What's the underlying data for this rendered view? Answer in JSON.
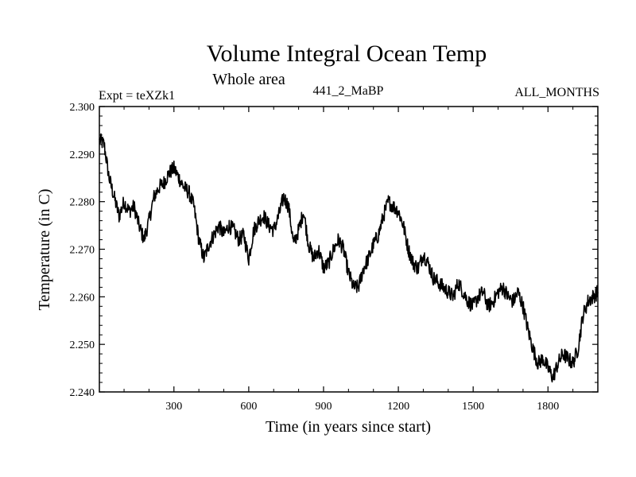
{
  "chart_data": {
    "type": "line",
    "title": "Volume Integral Ocean Temp",
    "subtitle": "Whole area",
    "experiment_label": "Expt = teXZk1",
    "run_label": "441_2_MaBP",
    "months_label": "ALL_MONTHS",
    "xlabel": "Time (in years since start)",
    "ylabel": "Temperature (in C)",
    "xlim": [
      1,
      2000
    ],
    "ylim": [
      2.24,
      2.3
    ],
    "xticks": [
      300,
      600,
      900,
      1200,
      1500,
      1800
    ],
    "xtick_labels": [
      "300",
      "600",
      "900",
      "1200",
      "1500",
      "1800"
    ],
    "yticks": [
      2.24,
      2.25,
      2.26,
      2.27,
      2.28,
      2.29,
      2.3
    ],
    "ytick_labels": [
      "2.240",
      "2.250",
      "2.260",
      "2.270",
      "2.280",
      "2.290",
      "2.300"
    ],
    "grid": false,
    "legend": "none",
    "series": [
      {
        "name": "Volume integral ocean temperature",
        "color": "#000000",
        "x": [
          1,
          20,
          40,
          60,
          80,
          100,
          120,
          140,
          160,
          180,
          200,
          220,
          240,
          260,
          280,
          300,
          320,
          340,
          360,
          380,
          400,
          420,
          440,
          460,
          480,
          500,
          520,
          540,
          560,
          580,
          600,
          620,
          640,
          660,
          680,
          700,
          720,
          740,
          760,
          780,
          800,
          820,
          840,
          860,
          880,
          900,
          920,
          940,
          960,
          980,
          1000,
          1020,
          1040,
          1060,
          1080,
          1100,
          1120,
          1140,
          1160,
          1180,
          1200,
          1220,
          1240,
          1260,
          1280,
          1300,
          1320,
          1340,
          1360,
          1380,
          1400,
          1420,
          1440,
          1460,
          1480,
          1500,
          1520,
          1540,
          1560,
          1580,
          1600,
          1620,
          1640,
          1660,
          1680,
          1700,
          1720,
          1740,
          1760,
          1780,
          1800,
          1820,
          1840,
          1860,
          1880,
          1900,
          1920,
          1940,
          1960,
          1980,
          2000
        ],
        "values": [
          2.293,
          2.292,
          2.285,
          2.281,
          2.277,
          2.28,
          2.278,
          2.279,
          2.275,
          2.272,
          2.276,
          2.281,
          2.283,
          2.284,
          2.286,
          2.287,
          2.285,
          2.283,
          2.282,
          2.279,
          2.272,
          2.268,
          2.271,
          2.273,
          2.275,
          2.273,
          2.275,
          2.274,
          2.272,
          2.273,
          2.268,
          2.274,
          2.276,
          2.277,
          2.275,
          2.274,
          2.277,
          2.281,
          2.279,
          2.271,
          2.274,
          2.278,
          2.271,
          2.268,
          2.27,
          2.266,
          2.267,
          2.27,
          2.272,
          2.27,
          2.265,
          2.262,
          2.262,
          2.266,
          2.268,
          2.271,
          2.273,
          2.277,
          2.28,
          2.279,
          2.278,
          2.275,
          2.27,
          2.267,
          2.266,
          2.269,
          2.267,
          2.264,
          2.263,
          2.262,
          2.261,
          2.26,
          2.263,
          2.261,
          2.259,
          2.258,
          2.26,
          2.261,
          2.258,
          2.259,
          2.261,
          2.262,
          2.26,
          2.259,
          2.261,
          2.258,
          2.253,
          2.249,
          2.246,
          2.247,
          2.245,
          2.243,
          2.246,
          2.248,
          2.247,
          2.246,
          2.249,
          2.256,
          2.259,
          2.26,
          2.261
        ]
      }
    ]
  }
}
